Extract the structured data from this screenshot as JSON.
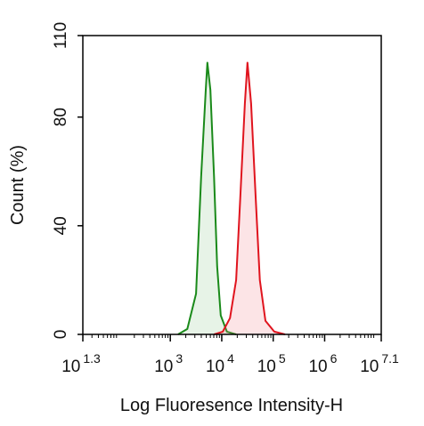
{
  "chart_data": {
    "type": "histogram-overlay",
    "x_label": "Log Fluoresence Intensity-H",
    "y_label": "Count  (%)",
    "x_scale": "log",
    "xlim": [
      1.3,
      7.1
    ],
    "xticks": [
      {
        "value": 1.3,
        "label": "10",
        "superscript": "1.3"
      },
      {
        "value": 3,
        "label": "10",
        "superscript": "3"
      },
      {
        "value": 4,
        "label": "10",
        "superscript": "4"
      },
      {
        "value": 5,
        "label": "10",
        "superscript": "5"
      },
      {
        "value": 6,
        "label": "10",
        "superscript": "6"
      },
      {
        "value": 7.1,
        "label": "10",
        "superscript": "7.1"
      }
    ],
    "ylim": [
      0,
      110
    ],
    "yticks": [
      0,
      40,
      80,
      110
    ],
    "series": [
      {
        "color": "#1a8a1a",
        "fill": "rgba(120,190,120,0.18)",
        "x": [
          3.15,
          3.33,
          3.5,
          3.6,
          3.69,
          3.72,
          3.78,
          3.85,
          3.91,
          3.98,
          4.1,
          4.28
        ],
        "values": [
          0,
          2,
          15,
          58,
          90,
          100,
          90,
          58,
          25,
          7,
          1,
          0
        ]
      },
      {
        "color": "#e0141e",
        "fill": "rgba(240,120,130,0.2)",
        "x": [
          3.85,
          4.02,
          4.16,
          4.28,
          4.36,
          4.45,
          4.5,
          4.57,
          4.66,
          4.74,
          4.85,
          5.02,
          5.23
        ],
        "values": [
          0,
          1,
          6,
          20,
          50,
          85,
          100,
          85,
          50,
          20,
          5,
          1,
          0
        ]
      }
    ]
  }
}
